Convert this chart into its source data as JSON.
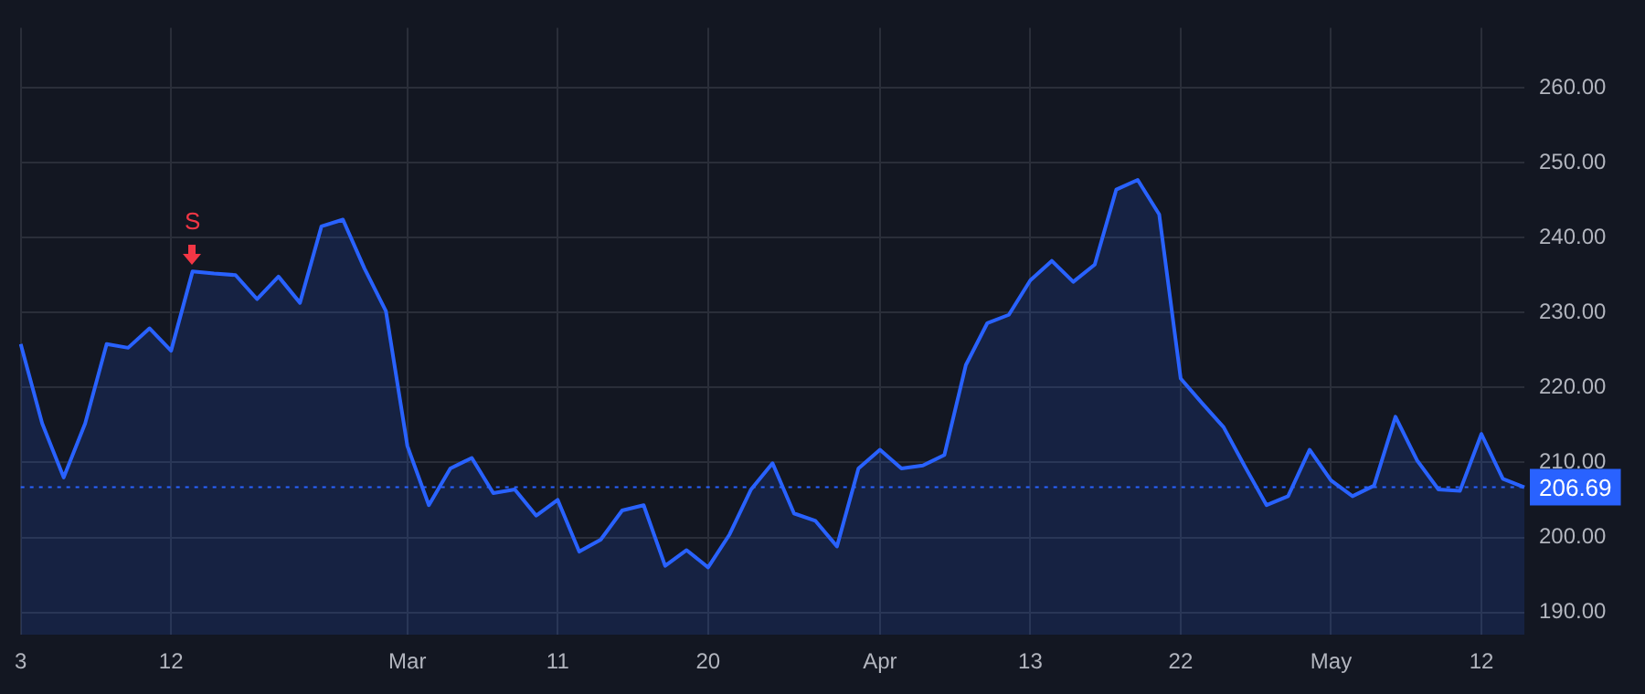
{
  "chart_data": {
    "type": "area",
    "categories": [
      "3",
      null,
      null,
      null,
      null,
      null,
      null,
      "12",
      null,
      null,
      null,
      null,
      null,
      null,
      null,
      null,
      null,
      null,
      "Mar",
      null,
      null,
      null,
      null,
      null,
      null,
      "11",
      null,
      null,
      null,
      null,
      null,
      null,
      "20",
      null,
      null,
      null,
      null,
      null,
      null,
      null,
      "Apr",
      null,
      null,
      null,
      null,
      null,
      null,
      "13",
      null,
      null,
      null,
      null,
      null,
      null,
      "22",
      null,
      null,
      null,
      null,
      null,
      null,
      "May",
      null,
      null,
      null,
      null,
      null,
      null,
      "12",
      null,
      null
    ],
    "series": [
      {
        "color": "#2962ff",
        "values": [
          225.8,
          215.2,
          208.0,
          215.2,
          225.8,
          225.3,
          227.9,
          224.9,
          235.5,
          235.2,
          235.0,
          231.8,
          234.8,
          231.3,
          241.5,
          242.4,
          235.9,
          230.2,
          212.2,
          204.3,
          209.2,
          210.6,
          205.9,
          206.4,
          202.9,
          205.0,
          198.1,
          199.7,
          203.6,
          204.3,
          196.2,
          198.3,
          196.0,
          200.4,
          206.4,
          209.9,
          203.2,
          202.2,
          198.8,
          209.2,
          211.7,
          209.2,
          209.6,
          211.0,
          223.0,
          228.6,
          229.7,
          234.3,
          236.9,
          234.1,
          236.4,
          246.4,
          247.7,
          243.1,
          221.2,
          217.9,
          214.7,
          209.4,
          204.3,
          205.5,
          211.7,
          207.6,
          205.5,
          206.9,
          216.1,
          210.3,
          206.4,
          206.2,
          213.8,
          207.8,
          206.69
        ]
      }
    ],
    "ylim": [
      187,
      268
    ],
    "yticks": [
      {
        "value": 190,
        "label": "190.00"
      },
      {
        "value": 200,
        "label": "200.00"
      },
      {
        "value": 210,
        "label": "210.00"
      },
      {
        "value": 220,
        "label": "220.00"
      },
      {
        "value": 230,
        "label": "230.00"
      },
      {
        "value": 240,
        "label": "240.00"
      },
      {
        "value": 250,
        "label": "250.00"
      },
      {
        "value": 260,
        "label": "260.00"
      }
    ],
    "grid": true,
    "legend": false,
    "marker": "none",
    "line_style": "solid",
    "ref_lines": [
      {
        "axis": "y",
        "value": 206.69,
        "label": "206.69",
        "color": "#2962ff",
        "line_style": "dotted"
      }
    ],
    "annotations": [
      {
        "text": "S",
        "y": 235.5
      }
    ]
  }
}
